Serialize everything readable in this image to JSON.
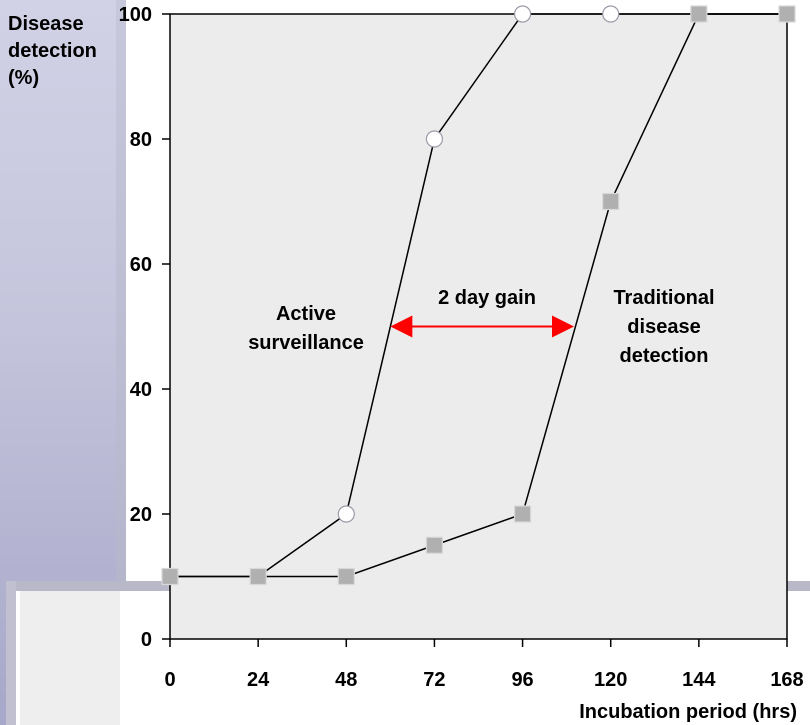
{
  "chart_data": {
    "type": "line",
    "title": "",
    "xlabel": "Incubation period (hrs)",
    "ylabel_lines": [
      "Disease",
      "detection",
      "(%)"
    ],
    "x": [
      0,
      24,
      48,
      72,
      96,
      120,
      144,
      168
    ],
    "x_ticks": [
      "0",
      "24",
      "48",
      "72",
      "96",
      "120",
      "144",
      "168"
    ],
    "y_ticks": [
      "0",
      "20",
      "40",
      "60",
      "80",
      "100"
    ],
    "xlim": [
      0,
      168
    ],
    "ylim": [
      0,
      100
    ],
    "series": [
      {
        "name": "Active surveillance",
        "marker": "circle",
        "values": [
          10,
          10,
          20,
          80,
          100,
          100,
          100,
          100
        ]
      },
      {
        "name": "Traditional disease detection",
        "marker": "square",
        "values": [
          10,
          10,
          10,
          15,
          20,
          70,
          100,
          100
        ]
      }
    ],
    "annotations": {
      "gain_label": "2 day gain",
      "active_lines": [
        "Active",
        "surveillance"
      ],
      "traditional_lines": [
        "Traditional",
        "disease",
        "detection"
      ],
      "arrow_from_x": 60,
      "arrow_to_x": 110,
      "arrow_y": 50,
      "arrow_color": "#ff0000"
    },
    "colors": {
      "plot_bg": "#ececec",
      "line": "#000000",
      "marker_fill": "#ffffff",
      "square_fill": "#b0b0b0"
    }
  }
}
